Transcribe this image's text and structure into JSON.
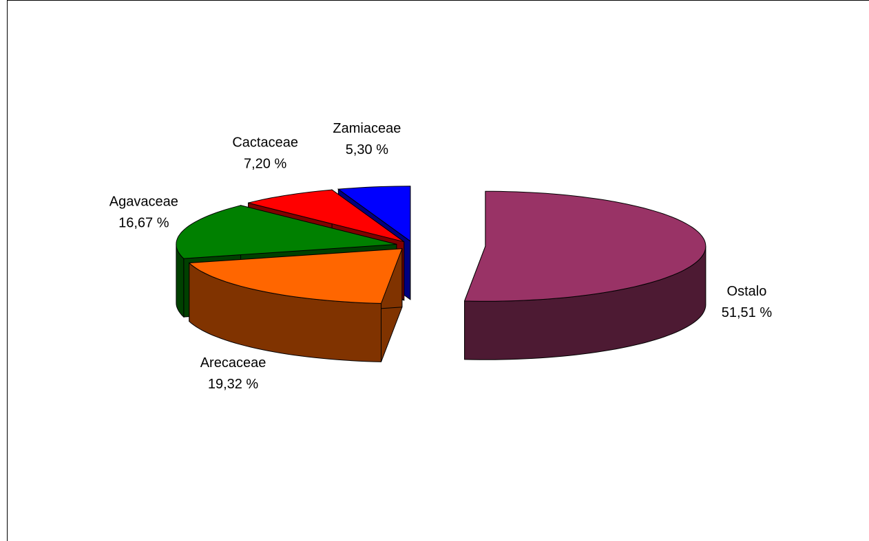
{
  "chart_data": {
    "type": "pie",
    "categories": [
      "Ostalo",
      "Arecaceae",
      "Agavaceae",
      "Cactaceae",
      "Zamiaceae"
    ],
    "values": [
      51.51,
      19.32,
      16.67,
      7.2,
      5.3
    ],
    "value_labels": [
      "51,51 %",
      "19,32 %",
      "16,67 %",
      "7,20 %",
      "5,30 %"
    ],
    "colors": [
      "#993366",
      "#FF6600",
      "#008000",
      "#FF0000",
      "#0000FF"
    ]
  }
}
